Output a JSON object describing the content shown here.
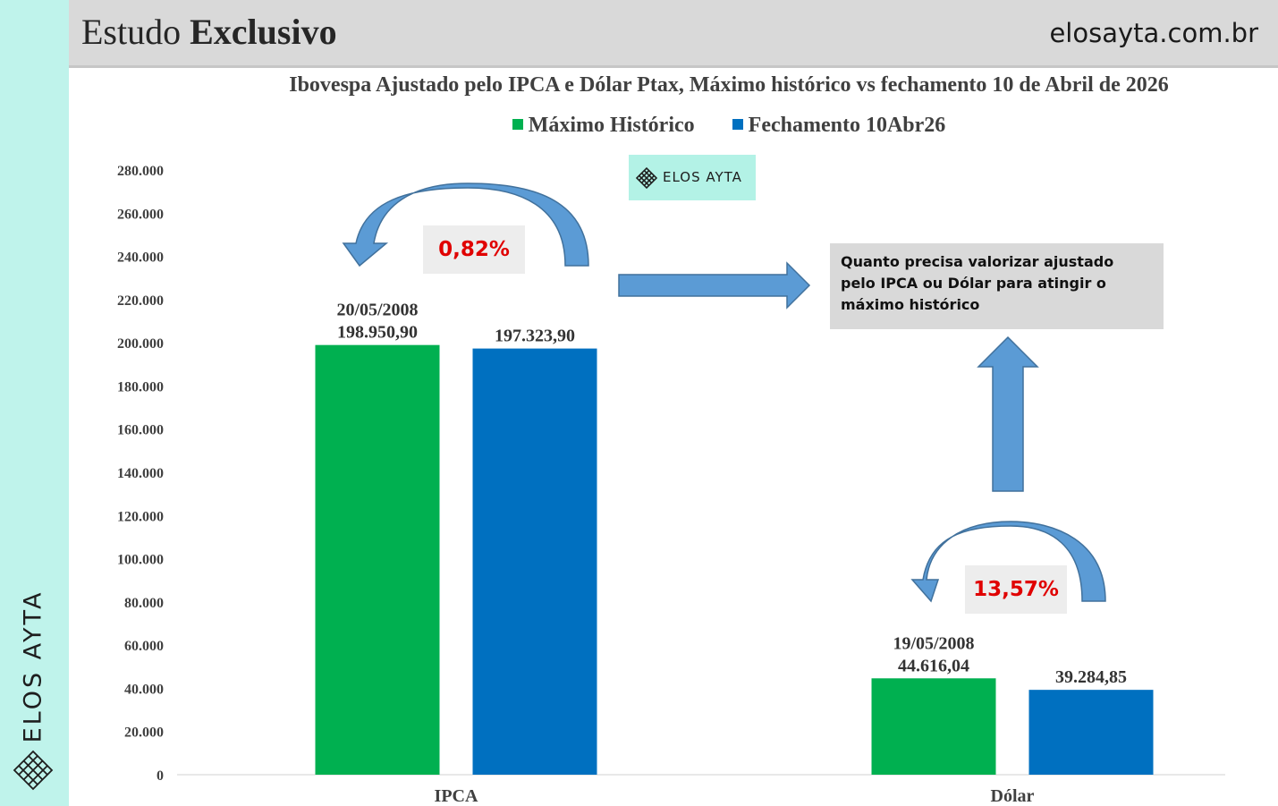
{
  "header": {
    "title_regular": "Estudo",
    "title_bold": "Exclusivo",
    "site": "elosayta.com.br"
  },
  "brand": {
    "side_text": "ELOS AYTA",
    "watermark_text": "ELOS AYTA"
  },
  "callouts": {
    "ipca_change": "0,82%",
    "dolar_change": "13,57%",
    "note": "Quanto precisa valorizar ajustado pelo IPCA ou Dólar para atingir o máximo histórico"
  },
  "colors": {
    "maximo": "#00b050",
    "fechamento": "#0070c0",
    "arrow": "#5b9bd5",
    "pct_text": "#e00000",
    "strip": "#bff3eb"
  },
  "chart_data": {
    "type": "bar",
    "title": "Ibovespa Ajustado pelo IPCA e Dólar Ptax, Máximo histórico vs fechamento 10 de Abril de 2026",
    "categories": [
      "IPCA",
      "Dólar"
    ],
    "series": [
      {
        "name": "Máximo Histórico",
        "color": "#00b050",
        "values": [
          198950.9,
          44616.04
        ],
        "labels": [
          [
            "20/05/2008",
            "198.950,90"
          ],
          [
            "19/05/2008",
            "44.616,04"
          ]
        ]
      },
      {
        "name": "Fechamento 10Abr26",
        "color": "#0070c0",
        "values": [
          197323.9,
          39284.85
        ],
        "labels": [
          [
            "197.323,90"
          ],
          [
            "39.284,85"
          ]
        ]
      }
    ],
    "y_ticks": [
      "0",
      "20.000",
      "40.000",
      "60.000",
      "80.000",
      "100.000",
      "120.000",
      "140.000",
      "160.000",
      "180.000",
      "200.000",
      "220.000",
      "240.000",
      "260.000",
      "280.000"
    ],
    "ylim": [
      0,
      280000
    ],
    "legend_position": "top",
    "grid": false
  }
}
